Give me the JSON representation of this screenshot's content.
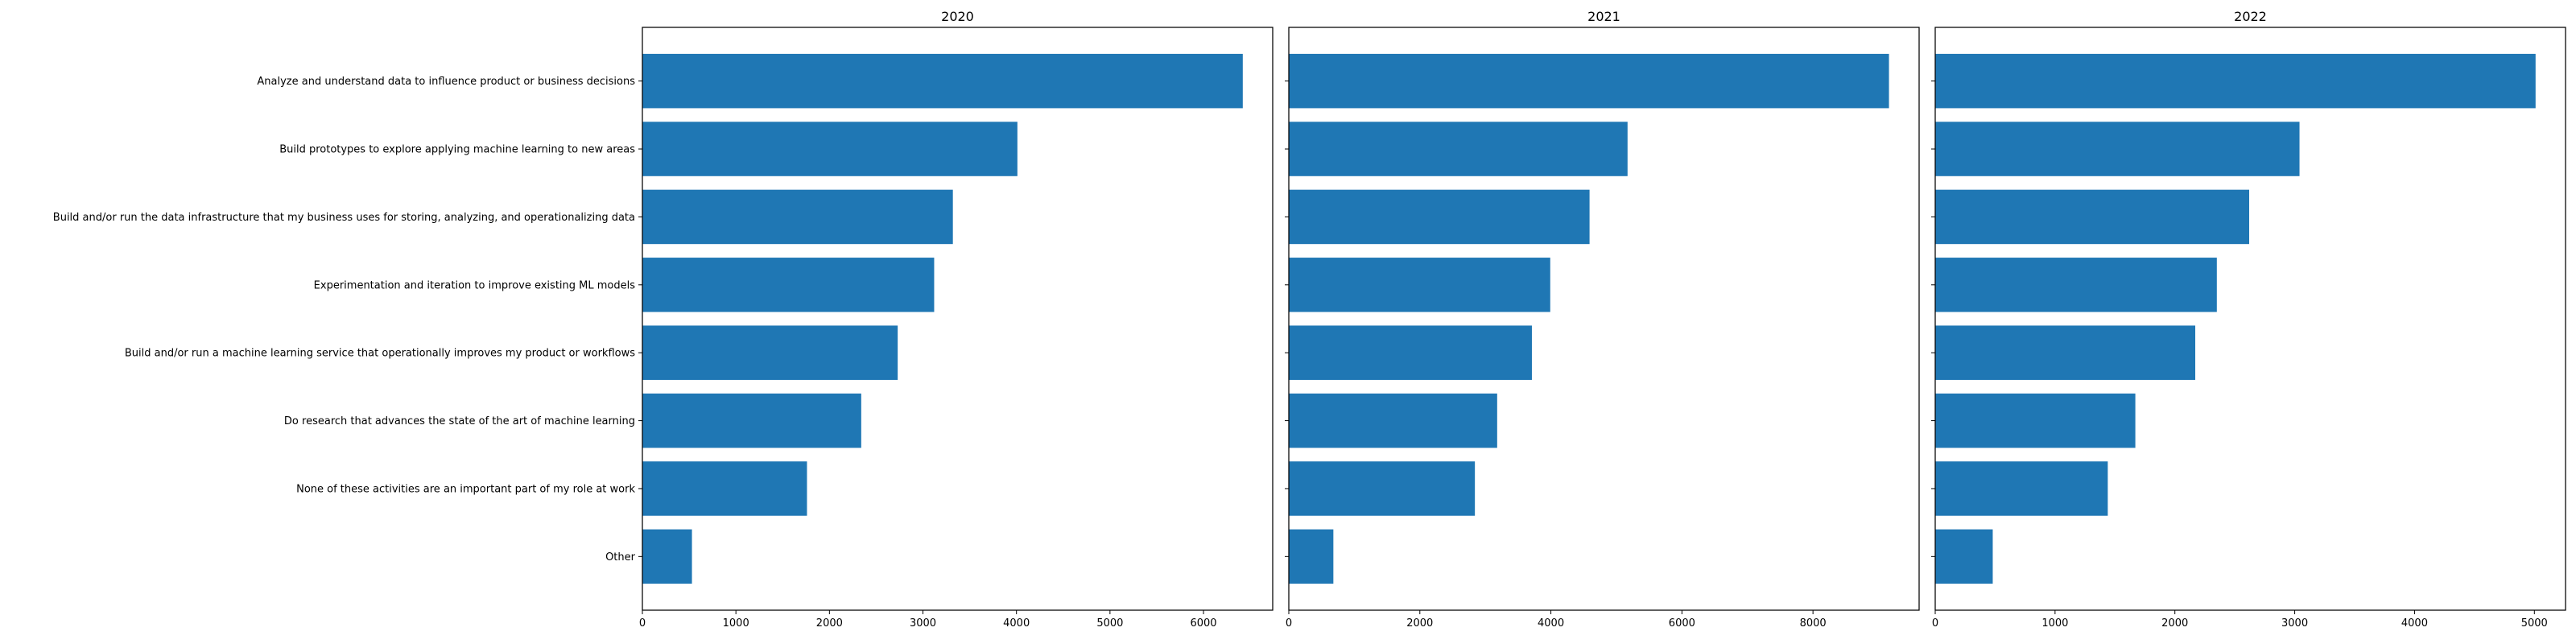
{
  "chart_data": {
    "type": "bar",
    "orientation": "horizontal",
    "bar_color": "#1f77b4",
    "categories": [
      "Analyze and understand data to influence product or business decisions",
      "Build prototypes to explore applying machine learning to new areas",
      "Build and/or run the data infrastructure that my business uses for storing, analyzing, and operationalizing data",
      "Experimentation and iteration to improve existing ML models",
      "Build and/or run a machine learning service that operationally improves my product or workflows",
      "Do research that advances the state of the art of machine learning",
      "None of these activities are an important part of my role at work",
      "Other"
    ],
    "panels": [
      {
        "title": "2020",
        "values": [
          6420,
          4010,
          3320,
          3120,
          2730,
          2340,
          1760,
          530
        ],
        "xlim": [
          0,
          6740
        ],
        "xticks": [
          0,
          1000,
          2000,
          3000,
          4000,
          5000,
          6000
        ]
      },
      {
        "title": "2021",
        "values": [
          9160,
          5170,
          4590,
          3990,
          3710,
          3180,
          2840,
          680
        ],
        "xlim": [
          0,
          9620
        ],
        "xticks": [
          0,
          2000,
          4000,
          6000,
          8000
        ]
      },
      {
        "title": "2022",
        "values": [
          5010,
          3040,
          2620,
          2350,
          2170,
          1670,
          1440,
          480
        ],
        "xlim": [
          0,
          5260
        ],
        "xticks": [
          0,
          1000,
          2000,
          3000,
          4000,
          5000
        ]
      }
    ]
  }
}
